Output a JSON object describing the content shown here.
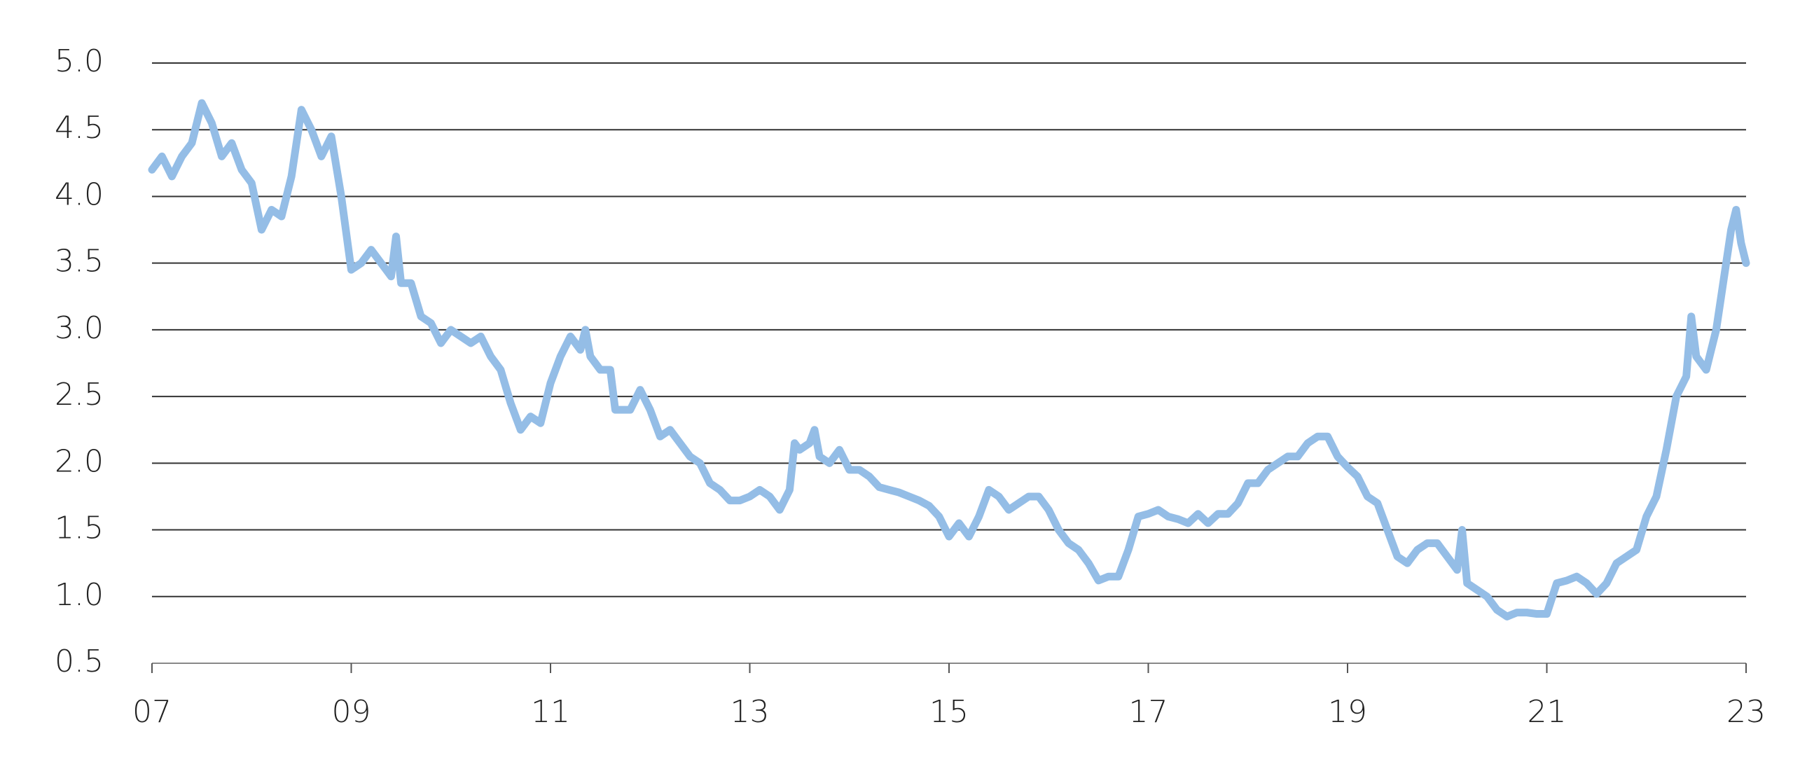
{
  "chart_data": {
    "type": "line",
    "x": [
      2007.0,
      2007.1,
      2007.2,
      2007.3,
      2007.4,
      2007.5,
      2007.6,
      2007.7,
      2007.8,
      2007.9,
      2008.0,
      2008.1,
      2008.2,
      2008.3,
      2008.4,
      2008.5,
      2008.6,
      2008.7,
      2008.8,
      2008.9,
      2009.0,
      2009.1,
      2009.2,
      2009.3,
      2009.4,
      2009.45,
      2009.5,
      2009.6,
      2009.7,
      2009.8,
      2009.9,
      2010.0,
      2010.1,
      2010.2,
      2010.3,
      2010.4,
      2010.5,
      2010.6,
      2010.7,
      2010.8,
      2010.9,
      2011.0,
      2011.1,
      2011.2,
      2011.3,
      2011.35,
      2011.4,
      2011.5,
      2011.6,
      2011.65,
      2011.8,
      2011.9,
      2012.0,
      2012.1,
      2012.2,
      2012.3,
      2012.4,
      2012.5,
      2012.6,
      2012.7,
      2012.8,
      2012.9,
      2013.0,
      2013.1,
      2013.2,
      2013.3,
      2013.4,
      2013.45,
      2013.5,
      2013.6,
      2013.65,
      2013.7,
      2013.8,
      2013.9,
      2014.0,
      2014.1,
      2014.2,
      2014.3,
      2014.4,
      2014.5,
      2014.6,
      2014.7,
      2014.8,
      2014.9,
      2015.0,
      2015.1,
      2015.2,
      2015.3,
      2015.4,
      2015.5,
      2015.6,
      2015.7,
      2015.8,
      2015.9,
      2016.0,
      2016.1,
      2016.2,
      2016.3,
      2016.4,
      2016.5,
      2016.6,
      2016.7,
      2016.8,
      2016.9,
      2017.0,
      2017.1,
      2017.2,
      2017.3,
      2017.4,
      2017.5,
      2017.6,
      2017.7,
      2017.8,
      2017.9,
      2018.0,
      2018.1,
      2018.2,
      2018.3,
      2018.4,
      2018.5,
      2018.6,
      2018.7,
      2018.8,
      2018.9,
      2019.0,
      2019.1,
      2019.2,
      2019.3,
      2019.4,
      2019.5,
      2019.6,
      2019.7,
      2019.8,
      2019.9,
      2020.0,
      2020.1,
      2020.15,
      2020.2,
      2020.3,
      2020.4,
      2020.5,
      2020.6,
      2020.7,
      2020.8,
      2020.9,
      2021.0,
      2021.1,
      2021.2,
      2021.3,
      2021.4,
      2021.5,
      2021.6,
      2021.7,
      2021.8,
      2021.9,
      2022.0,
      2022.1,
      2022.2,
      2022.3,
      2022.4,
      2022.45,
      2022.5,
      2022.6,
      2022.7,
      2022.8,
      2022.85,
      2022.9,
      2022.95,
      2023.0
    ],
    "series": [
      {
        "color": "#94bde6",
        "values": [
          4.2,
          4.3,
          4.15,
          4.3,
          4.4,
          4.7,
          4.55,
          4.3,
          4.4,
          4.2,
          4.1,
          3.75,
          3.9,
          3.85,
          4.15,
          4.65,
          4.5,
          4.3,
          4.45,
          4.0,
          3.45,
          3.5,
          3.6,
          3.5,
          3.4,
          3.7,
          3.35,
          3.35,
          3.1,
          3.05,
          2.9,
          3.0,
          2.95,
          2.9,
          2.95,
          2.8,
          2.7,
          2.45,
          2.25,
          2.35,
          2.3,
          2.6,
          2.8,
          2.95,
          2.85,
          3.0,
          2.8,
          2.7,
          2.7,
          2.4,
          2.4,
          2.55,
          2.4,
          2.2,
          2.25,
          2.15,
          2.05,
          2.0,
          1.85,
          1.8,
          1.72,
          1.72,
          1.75,
          1.8,
          1.75,
          1.65,
          1.8,
          2.15,
          2.1,
          2.15,
          2.25,
          2.05,
          2.0,
          2.1,
          1.95,
          1.95,
          1.9,
          1.82,
          1.8,
          1.78,
          1.75,
          1.72,
          1.68,
          1.6,
          1.45,
          1.55,
          1.45,
          1.6,
          1.8,
          1.75,
          1.65,
          1.7,
          1.75,
          1.75,
          1.65,
          1.5,
          1.4,
          1.35,
          1.25,
          1.12,
          1.15,
          1.15,
          1.35,
          1.6,
          1.62,
          1.65,
          1.6,
          1.58,
          1.55,
          1.62,
          1.55,
          1.62,
          1.62,
          1.7,
          1.85,
          1.85,
          1.95,
          2.0,
          2.05,
          2.05,
          2.15,
          2.2,
          2.2,
          2.05,
          1.97,
          1.9,
          1.75,
          1.7,
          1.5,
          1.3,
          1.25,
          1.35,
          1.4,
          1.4,
          1.3,
          1.2,
          1.5,
          1.1,
          1.05,
          1.0,
          0.9,
          0.85,
          0.88,
          0.88,
          0.87,
          0.87,
          1.1,
          1.12,
          1.15,
          1.1,
          1.02,
          1.1,
          1.25,
          1.3,
          1.35,
          1.6,
          1.75,
          2.1,
          2.5,
          2.65,
          3.1,
          2.8,
          2.7,
          3.0,
          3.5,
          3.75,
          3.9,
          3.65,
          3.5
        ]
      }
    ],
    "xlim": [
      2007,
      2023
    ],
    "xticks": [
      {
        "value": 2007,
        "label": "07"
      },
      {
        "value": 2009,
        "label": "09"
      },
      {
        "value": 2011,
        "label": "11"
      },
      {
        "value": 2013,
        "label": "13"
      },
      {
        "value": 2015,
        "label": "15"
      },
      {
        "value": 2017,
        "label": "17"
      },
      {
        "value": 2019,
        "label": "19"
      },
      {
        "value": 2021,
        "label": "21"
      },
      {
        "value": 2023,
        "label": "23"
      }
    ],
    "ylim": [
      0.5,
      5
    ],
    "yticks": [
      0.5,
      {
        "value": 1,
        "label": "1.0"
      },
      1.5,
      {
        "value": 2,
        "label": "2.0"
      },
      2.5,
      {
        "value": 3,
        "label": "3.0"
      },
      3.5,
      {
        "value": 4,
        "label": "4.0"
      },
      4.5,
      {
        "value": 5,
        "label": "5.0"
      }
    ],
    "grid": true
  }
}
